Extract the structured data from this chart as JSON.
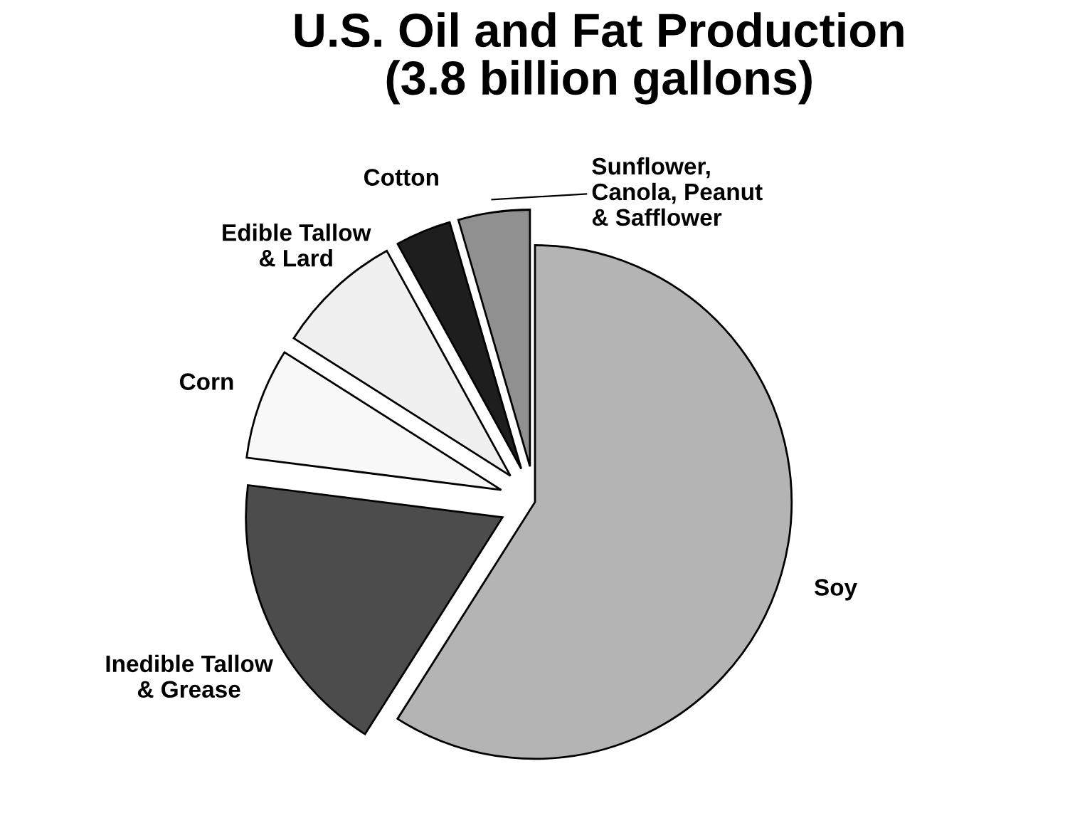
{
  "chart_data": {
    "type": "pie",
    "title": "U.S. Oil and Fat Production\n(3.8 billion gallons)",
    "categories": [
      "Soy",
      "Inedible Tallow\n& Grease",
      "Corn",
      "Edible Tallow\n& Lard",
      "Cotton",
      "Sunflower,\nCanola, Peanut\n& Safflower"
    ],
    "values": [
      59,
      18,
      7,
      8,
      3.5,
      4.5
    ],
    "colors": [
      "#b4b4b4",
      "#4c4c4c",
      "#f8f8f8",
      "#f0f0f0",
      "#1e1e1e",
      "#909090"
    ]
  }
}
